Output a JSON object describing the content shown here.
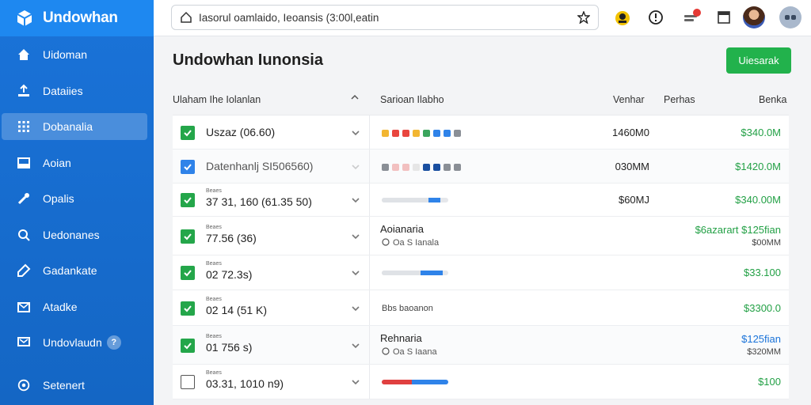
{
  "app": {
    "name": "Undowhan"
  },
  "sidebar": {
    "items": [
      {
        "label": "Uidoman",
        "icon": "home-icon"
      },
      {
        "label": "Dataiies",
        "icon": "upload-icon"
      },
      {
        "label": "Dobanalia",
        "icon": "grid-icon",
        "active": true
      },
      {
        "label": "Aoian",
        "icon": "inbox-icon"
      },
      {
        "label": "Opalis",
        "icon": "wrench-icon"
      },
      {
        "label": "Uedonanes",
        "icon": "search-icon"
      },
      {
        "label": "Gadankate",
        "icon": "tag-icon"
      },
      {
        "label": "Atadke",
        "icon": "mail-icon"
      },
      {
        "label": "Undovlaudn",
        "icon": "message-icon",
        "badge": "?"
      }
    ],
    "bottom": {
      "label": "Setenert",
      "icon": "settings-icon"
    }
  },
  "topbar": {
    "address": "Iasorul oamlaido, Ieoansis (3:00l,eatin",
    "notification_count": "0"
  },
  "main": {
    "title": "Undowhan Iunonsia",
    "primary_button": "Uiesarak"
  },
  "table": {
    "headers": {
      "name": "Ulaham Ihe Iolanlan",
      "chart": "Sarioan Ilabho",
      "volume": "Venhar",
      "period": "Perhas",
      "price": "Benka"
    },
    "rows": [
      {
        "check": "green",
        "name": "Uszaz (06.60)",
        "viz": "dots",
        "colors": [
          "#f2b632",
          "#e9463f",
          "#e9463f",
          "#f2b632",
          "#3ba55d",
          "#2f83e9",
          "#2f83e9",
          "#8a8f96"
        ],
        "volume": "1460M0",
        "price": "$340.0M",
        "price_color": "green"
      },
      {
        "check": "blue",
        "name": "Datenhanlj SI506560)",
        "muted": true,
        "viz": "dots",
        "colors": [
          "#8a8f96",
          "#f2c0c0",
          "#f2c0c0",
          "#e6e6e6",
          "#1a4fa0",
          "#1a4fa0",
          "#8a8f96",
          "#8a8f96"
        ],
        "volume": "030MM",
        "price": "$1420.0M",
        "price_color": "green"
      },
      {
        "check": "green",
        "small": "Beaes",
        "name": "37 31, 160 (61.35 50)",
        "viz": "bar",
        "bar": {
          "gray_start": 0,
          "gray_end": 0.7,
          "accent_start": 0.7,
          "accent_end": 0.88,
          "accent_color": "#2f83e9"
        },
        "volume": "$60MJ",
        "price": "$340.00M",
        "price_color": "green"
      },
      {
        "check": "green",
        "small": "Beaes",
        "name": "77.56 (36)",
        "viz": "title",
        "title": "Aoianaria",
        "subtitle": "Oa S Ianala",
        "price": "$6azarart $125fian",
        "price_color": "green",
        "price2": "$00MM"
      },
      {
        "check": "green",
        "small": "Beaes",
        "name": "02 72.3s)",
        "viz": "bar",
        "bar": {
          "gray_start": 0,
          "gray_end": 0.58,
          "accent_start": 0.58,
          "accent_end": 0.92,
          "accent_color": "#2f83e9"
        },
        "price": "$33.100",
        "price_color": "green"
      },
      {
        "check": "green",
        "small": "Beaes",
        "name": "02 14 (51 K)",
        "viz": "note",
        "note": "Bbs baoanon",
        "price": "$3300.0",
        "price_color": "green"
      },
      {
        "check": "green",
        "small": "Beaes",
        "name": "01 756 s)",
        "viz": "title",
        "title": "Rehnaria",
        "subtitle": "Oa S Iaana",
        "price": "$125fian",
        "price_color": "blue",
        "price2": "$320MM"
      },
      {
        "check": "empty",
        "small": "Beaes",
        "name": "03.31, 1010 n9)",
        "viz": "bar",
        "bar": {
          "gray_start": 0,
          "gray_end": 0,
          "accent_start": 0,
          "accent_end": 0.45,
          "accent_color": "#e04040",
          "accent2_start": 0.45,
          "accent2_end": 1.0,
          "accent2_color": "#2f83e9"
        },
        "price": "$100",
        "price_color": "green"
      }
    ]
  },
  "colors": {
    "sidebar": "#1a73d9",
    "accent_green": "#22b24c",
    "brand_blue": "#1e88f0"
  }
}
